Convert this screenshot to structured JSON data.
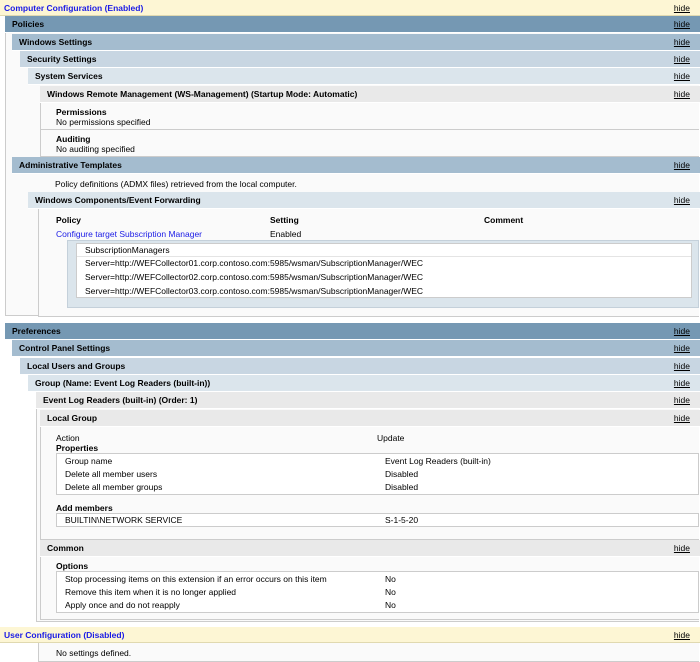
{
  "hide_label": "hide",
  "computer_config": {
    "title": "Computer Configuration (Enabled)"
  },
  "policies": {
    "title": "Policies",
    "windows_settings": "Windows Settings",
    "security_settings": "Security Settings",
    "system_services": "System Services",
    "service": {
      "title": "Windows Remote Management (WS-Management) (Startup Mode: Automatic)",
      "permissions_label": "Permissions",
      "permissions_value": "No permissions specified",
      "auditing_label": "Auditing",
      "auditing_value": "No auditing specified"
    },
    "admin_templates": {
      "title": "Administrative Templates",
      "note": "Policy definitions (ADMX files) retrieved from the local computer."
    },
    "event_forwarding": {
      "title": "Windows Components/Event Forwarding",
      "columns": [
        "Policy",
        "Setting",
        "Comment"
      ],
      "policy": "Configure target Subscription Manager",
      "setting": "Enabled",
      "list_header": "SubscriptionManagers",
      "servers": [
        "Server=http://WEFCollector01.corp.contoso.com:5985/wsman/SubscriptionManager/WEC",
        "Server=http://WEFCollector02.corp.contoso.com:5985/wsman/SubscriptionManager/WEC",
        "Server=http://WEFCollector03.corp.contoso.com:5985/wsman/SubscriptionManager/WEC"
      ]
    }
  },
  "preferences": {
    "title": "Preferences",
    "control_panel": "Control Panel Settings",
    "local_users": "Local Users and Groups",
    "group": "Group (Name: Event Log Readers (built-in))",
    "item": "Event Log Readers (built-in) (Order: 1)",
    "local_group": {
      "title": "Local Group",
      "action_label": "Action",
      "action_value": "Update",
      "properties_label": "Properties",
      "properties": [
        {
          "k": "Group name",
          "v": "Event Log Readers (built-in)"
        },
        {
          "k": "Delete all member users",
          "v": "Disabled"
        },
        {
          "k": "Delete all member groups",
          "v": "Disabled"
        }
      ],
      "add_members_label": "Add members",
      "members": [
        {
          "k": "BUILTIN\\NETWORK SERVICE",
          "v": "S-1-5-20"
        }
      ]
    },
    "common": {
      "title": "Common",
      "options_label": "Options",
      "options": [
        {
          "k": "Stop processing items on this extension if an error occurs on this item",
          "v": "No"
        },
        {
          "k": "Remove this item when it is no longer applied",
          "v": "No"
        },
        {
          "k": "Apply once and do not reapply",
          "v": "No"
        }
      ]
    }
  },
  "user_config": {
    "title": "User Configuration (Disabled)",
    "note": "No settings defined."
  },
  "colors": {
    "config_bg": "#fdf6d4",
    "link": "#1a1ae6",
    "level0": "#7598b3",
    "level1": "#a4bccf",
    "level2": "#c8d6e2",
    "level3": "#dbe5ec",
    "level4": "#e9e9e9"
  }
}
